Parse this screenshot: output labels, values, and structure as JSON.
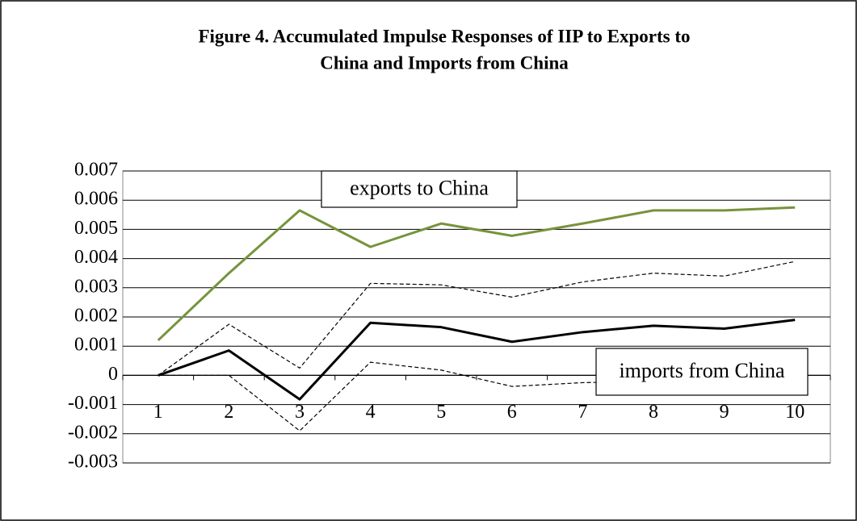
{
  "chart_data": {
    "type": "line",
    "title": [
      "Figure 4. Accumulated Impulse Responses of IIP to Exports to",
      "China and Imports from China"
    ],
    "categories": [
      "1",
      "2",
      "3",
      "4",
      "5",
      "6",
      "7",
      "8",
      "9",
      "10"
    ],
    "series": [
      {
        "name": "exports to China",
        "color": "#77933c",
        "width": 3,
        "dashed": false,
        "values": [
          0.0012,
          0.0035,
          0.00565,
          0.0044,
          0.0052,
          0.00478,
          0.0052,
          0.00565,
          0.00565,
          0.00575
        ]
      },
      {
        "name": "imports from China",
        "color": "#000000",
        "width": 3,
        "dashed": false,
        "values": [
          0,
          0.00085,
          -0.00082,
          0.0018,
          0.00165,
          0.00115,
          0.00148,
          0.0017,
          0.0016,
          0.0019
        ]
      },
      {
        "color": "#000000",
        "width": 1.2,
        "dashed": true,
        "values": [
          0,
          0.00175,
          0.00025,
          0.00315,
          0.0031,
          0.00268,
          0.0032,
          0.0035,
          0.0034,
          0.0039
        ]
      },
      {
        "color": "#000000",
        "width": 1.2,
        "dashed": true,
        "values": [
          0,
          0,
          -0.0019,
          0.00045,
          0.00018,
          -0.00038,
          -0.00025,
          -0.0002,
          -0.0001,
          0.0002
        ]
      }
    ],
    "ylim": [
      -0.003,
      0.007
    ],
    "yticks": [
      -0.003,
      -0.002,
      -0.001,
      0,
      0.001,
      0.002,
      0.003,
      0.004,
      0.005,
      0.006,
      0.007
    ],
    "grid": true
  }
}
